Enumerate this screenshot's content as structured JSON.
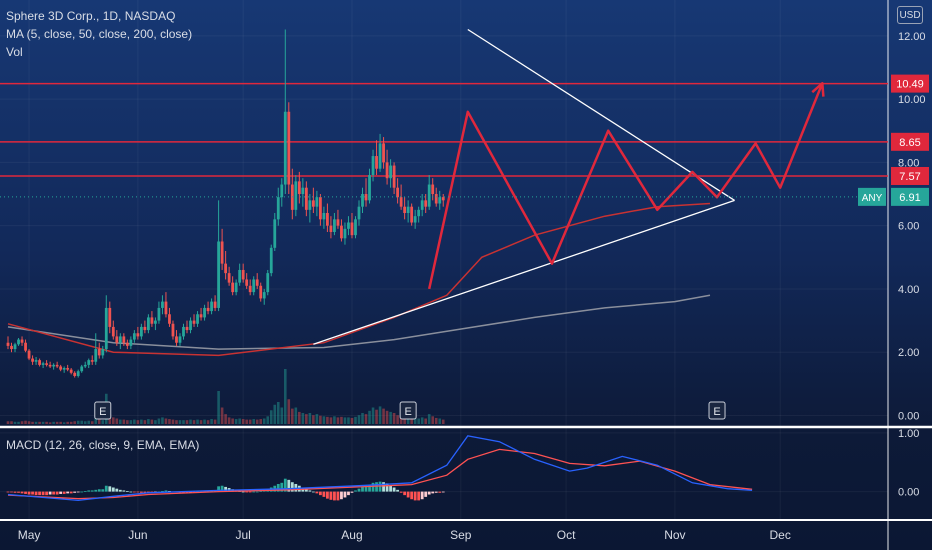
{
  "header": {
    "symbol_line": "Sphere 3D Corp., 1D, NASDAQ",
    "ma_line": "MA (5, close, 50, close, 200, close)",
    "vol_line": "Vol"
  },
  "currency_badge": "USD",
  "macd_label": "MACD (12, 26, close, 9, EMA, EMA)",
  "colors": {
    "up": "#26a69a",
    "down": "#ef5350",
    "resistance": "#e0283c",
    "pattern": "#e0283c",
    "trendline": "#ffffff",
    "ma_fast": "#c83232",
    "ma_slow": "#8a8f9c",
    "macd_line": "#2962ff",
    "signal_line": "#ff5252"
  },
  "chart_data": [
    {
      "type": "candlestick",
      "title": "Sphere 3D Corp., 1D, NASDAQ",
      "ylim": [
        -0.3,
        12.5
      ],
      "yticks": [
        "12.00",
        "10.00",
        "8.00",
        "6.00",
        "4.00",
        "2.00",
        "0.00"
      ],
      "yticks_values": [
        12,
        10,
        8,
        6,
        4,
        2,
        0
      ],
      "x_labels": [
        "May",
        "Jun",
        "Jul",
        "Aug",
        "Sep",
        "Oct",
        "Nov",
        "Dec"
      ],
      "x_label_days": [
        6,
        37,
        67,
        98,
        129,
        159,
        190,
        220
      ],
      "price_tags": [
        {
          "label": "10.49",
          "value": 10.49
        },
        {
          "label": "8.65",
          "value": 8.65
        },
        {
          "label": "7.57",
          "value": 7.57
        }
      ],
      "last_price": {
        "symbol": "ANY",
        "label": "6.91",
        "value": 6.91
      },
      "earnings_markers": [
        {
          "label": "E",
          "day": 27
        },
        {
          "label": "E",
          "day": 114
        },
        {
          "label": "E",
          "day": 202
        }
      ],
      "horizontal_levels": [
        10.49,
        8.65,
        7.57
      ],
      "triangle_upper": [
        [
          131,
          12.2
        ],
        [
          207,
          6.8
        ]
      ],
      "triangle_lower": [
        [
          87,
          2.25
        ],
        [
          207,
          6.8
        ]
      ],
      "pattern_path": [
        [
          120,
          4.0
        ],
        [
          131,
          9.6
        ],
        [
          155,
          4.8
        ],
        [
          171,
          9.0
        ],
        [
          185,
          6.5
        ],
        [
          195,
          7.7
        ],
        [
          202,
          6.9
        ],
        [
          213,
          8.6
        ],
        [
          220,
          7.2
        ],
        [
          232,
          10.5
        ]
      ],
      "ma_fast": [
        [
          0,
          2.9
        ],
        [
          30,
          2.0
        ],
        [
          60,
          1.9
        ],
        [
          90,
          2.3
        ],
        [
          110,
          3.1
        ],
        [
          125,
          3.8
        ],
        [
          135,
          5.0
        ],
        [
          150,
          5.7
        ],
        [
          170,
          6.3
        ],
        [
          185,
          6.6
        ],
        [
          200,
          6.7
        ]
      ],
      "ma_slow": [
        [
          0,
          2.8
        ],
        [
          30,
          2.3
        ],
        [
          60,
          2.1
        ],
        [
          90,
          2.15
        ],
        [
          110,
          2.4
        ],
        [
          130,
          2.75
        ],
        [
          150,
          3.1
        ],
        [
          170,
          3.4
        ],
        [
          190,
          3.6
        ],
        [
          200,
          3.8
        ]
      ],
      "ohlc": [
        [
          2.3,
          2.5,
          2.1,
          2.2
        ],
        [
          2.2,
          2.3,
          2.0,
          2.1
        ],
        [
          2.1,
          2.3,
          2.0,
          2.25
        ],
        [
          2.25,
          2.45,
          2.2,
          2.4
        ],
        [
          2.4,
          2.5,
          2.2,
          2.3
        ],
        [
          2.3,
          2.4,
          2.0,
          2.05
        ],
        [
          2.05,
          2.1,
          1.75,
          1.8
        ],
        [
          1.8,
          1.9,
          1.6,
          1.7
        ],
        [
          1.7,
          1.85,
          1.6,
          1.75
        ],
        [
          1.75,
          1.8,
          1.55,
          1.6
        ],
        [
          1.6,
          1.7,
          1.5,
          1.65
        ],
        [
          1.65,
          1.75,
          1.55,
          1.6
        ],
        [
          1.6,
          1.7,
          1.5,
          1.55
        ],
        [
          1.55,
          1.65,
          1.45,
          1.6
        ],
        [
          1.6,
          1.7,
          1.5,
          1.55
        ],
        [
          1.55,
          1.6,
          1.4,
          1.45
        ],
        [
          1.45,
          1.55,
          1.35,
          1.5
        ],
        [
          1.5,
          1.6,
          1.4,
          1.45
        ],
        [
          1.45,
          1.5,
          1.3,
          1.35
        ],
        [
          1.35,
          1.4,
          1.2,
          1.25
        ],
        [
          1.25,
          1.45,
          1.2,
          1.4
        ],
        [
          1.4,
          1.6,
          1.35,
          1.55
        ],
        [
          1.55,
          1.7,
          1.5,
          1.6
        ],
        [
          1.6,
          1.8,
          1.5,
          1.75
        ],
        [
          1.75,
          1.9,
          1.6,
          1.7
        ],
        [
          1.7,
          2.6,
          1.6,
          2.1
        ],
        [
          2.1,
          2.3,
          1.8,
          1.9
        ],
        [
          1.9,
          2.2,
          1.8,
          2.1
        ],
        [
          2.1,
          3.8,
          2.0,
          3.4
        ],
        [
          3.4,
          3.6,
          2.6,
          2.8
        ],
        [
          2.8,
          3.0,
          2.4,
          2.5
        ],
        [
          2.5,
          2.7,
          2.2,
          2.3
        ],
        [
          2.3,
          2.6,
          2.1,
          2.5
        ],
        [
          2.5,
          2.6,
          2.2,
          2.3
        ],
        [
          2.3,
          2.4,
          2.1,
          2.2
        ],
        [
          2.2,
          2.5,
          2.1,
          2.4
        ],
        [
          2.4,
          2.7,
          2.3,
          2.6
        ],
        [
          2.6,
          2.8,
          2.4,
          2.5
        ],
        [
          2.5,
          2.9,
          2.4,
          2.8
        ],
        [
          2.8,
          3.0,
          2.6,
          2.7
        ],
        [
          2.7,
          3.2,
          2.6,
          3.1
        ],
        [
          3.1,
          3.3,
          2.8,
          2.9
        ],
        [
          2.9,
          3.1,
          2.7,
          3.0
        ],
        [
          3.0,
          3.6,
          2.9,
          3.4
        ],
        [
          3.4,
          3.8,
          3.2,
          3.6
        ],
        [
          3.6,
          3.9,
          3.1,
          3.2
        ],
        [
          3.2,
          3.4,
          2.8,
          2.9
        ],
        [
          2.9,
          3.0,
          2.4,
          2.5
        ],
        [
          2.5,
          2.7,
          2.2,
          2.3
        ],
        [
          2.3,
          2.6,
          2.2,
          2.5
        ],
        [
          2.5,
          2.9,
          2.4,
          2.8
        ],
        [
          2.8,
          3.0,
          2.6,
          2.7
        ],
        [
          2.7,
          3.1,
          2.6,
          3.0
        ],
        [
          3.0,
          3.2,
          2.8,
          2.9
        ],
        [
          2.9,
          3.3,
          2.8,
          3.2
        ],
        [
          3.2,
          3.4,
          3.0,
          3.1
        ],
        [
          3.1,
          3.5,
          3.0,
          3.4
        ],
        [
          3.4,
          3.6,
          3.2,
          3.3
        ],
        [
          3.3,
          3.7,
          3.2,
          3.6
        ],
        [
          3.6,
          3.8,
          3.3,
          3.4
        ],
        [
          3.4,
          6.8,
          3.3,
          5.5
        ],
        [
          5.5,
          5.9,
          4.6,
          4.8
        ],
        [
          4.8,
          5.2,
          4.3,
          4.5
        ],
        [
          4.5,
          4.7,
          4.1,
          4.2
        ],
        [
          4.2,
          4.4,
          3.8,
          3.9
        ],
        [
          3.9,
          4.3,
          3.8,
          4.2
        ],
        [
          4.2,
          4.8,
          4.1,
          4.6
        ],
        [
          4.6,
          4.8,
          4.2,
          4.3
        ],
        [
          4.3,
          4.5,
          4.0,
          4.1
        ],
        [
          4.1,
          4.3,
          3.8,
          3.9
        ],
        [
          3.9,
          4.4,
          3.8,
          4.3
        ],
        [
          4.3,
          4.5,
          4.0,
          4.1
        ],
        [
          4.1,
          4.2,
          3.6,
          3.7
        ],
        [
          3.7,
          4.0,
          3.5,
          3.9
        ],
        [
          3.9,
          4.6,
          3.8,
          4.5
        ],
        [
          4.5,
          5.4,
          4.4,
          5.3
        ],
        [
          5.3,
          6.4,
          5.2,
          6.2
        ],
        [
          6.2,
          7.2,
          6.0,
          6.9
        ],
        [
          6.9,
          7.5,
          6.6,
          7.3
        ],
        [
          7.3,
          12.2,
          7.0,
          9.6
        ],
        [
          9.6,
          9.9,
          7.0,
          7.3
        ],
        [
          7.3,
          7.8,
          6.2,
          6.5
        ],
        [
          6.5,
          7.6,
          6.3,
          7.4
        ],
        [
          7.4,
          7.7,
          6.7,
          7.0
        ],
        [
          7.0,
          7.5,
          6.6,
          7.2
        ],
        [
          7.2,
          7.4,
          6.3,
          6.5
        ],
        [
          6.5,
          7.0,
          6.1,
          6.8
        ],
        [
          6.8,
          7.2,
          6.4,
          6.6
        ],
        [
          6.6,
          7.1,
          6.3,
          6.9
        ],
        [
          6.9,
          7.0,
          6.0,
          6.2
        ],
        [
          6.2,
          6.6,
          5.9,
          6.4
        ],
        [
          6.4,
          6.7,
          5.8,
          6.0
        ],
        [
          6.0,
          6.3,
          5.6,
          5.8
        ],
        [
          5.8,
          6.4,
          5.7,
          6.2
        ],
        [
          6.2,
          6.5,
          5.9,
          6.0
        ],
        [
          6.0,
          6.2,
          5.5,
          5.6
        ],
        [
          5.6,
          6.1,
          5.4,
          5.9
        ],
        [
          5.9,
          6.3,
          5.7,
          6.1
        ],
        [
          6.1,
          6.4,
          5.6,
          5.7
        ],
        [
          5.7,
          6.3,
          5.6,
          6.2
        ],
        [
          6.2,
          6.8,
          6.0,
          6.6
        ],
        [
          6.6,
          7.2,
          6.4,
          7.0
        ],
        [
          7.0,
          7.5,
          6.6,
          6.8
        ],
        [
          6.8,
          7.8,
          6.7,
          7.6
        ],
        [
          7.6,
          8.4,
          7.4,
          8.2
        ],
        [
          8.2,
          8.7,
          7.6,
          7.8
        ],
        [
          7.8,
          8.9,
          7.7,
          8.6
        ],
        [
          8.6,
          8.8,
          7.8,
          8.0
        ],
        [
          8.0,
          8.4,
          7.3,
          7.5
        ],
        [
          7.5,
          8.1,
          7.2,
          7.9
        ],
        [
          7.9,
          8.0,
          7.0,
          7.2
        ],
        [
          7.2,
          7.5,
          6.7,
          6.9
        ],
        [
          6.9,
          7.3,
          6.5,
          6.6
        ],
        [
          6.6,
          6.9,
          6.2,
          6.4
        ],
        [
          6.4,
          6.8,
          6.1,
          6.6
        ],
        [
          6.6,
          6.7,
          6.0,
          6.1
        ],
        [
          6.1,
          6.5,
          5.9,
          6.3
        ],
        [
          6.3,
          6.6,
          6.1,
          6.5
        ],
        [
          6.5,
          7.0,
          6.3,
          6.8
        ],
        [
          6.8,
          7.0,
          6.4,
          6.6
        ],
        [
          6.6,
          7.6,
          6.5,
          7.3
        ],
        [
          7.3,
          7.5,
          6.8,
          7.0
        ],
        [
          7.0,
          7.2,
          6.6,
          6.7
        ],
        [
          6.7,
          7.1,
          6.5,
          6.9
        ],
        [
          6.9,
          7.0,
          6.6,
          6.8
        ]
      ],
      "volume": [
        0.05,
        0.05,
        0.04,
        0.04,
        0.05,
        0.06,
        0.05,
        0.04,
        0.04,
        0.04,
        0.04,
        0.04,
        0.03,
        0.04,
        0.04,
        0.04,
        0.03,
        0.04,
        0.04,
        0.05,
        0.06,
        0.06,
        0.05,
        0.06,
        0.05,
        0.1,
        0.08,
        0.07,
        0.55,
        0.18,
        0.12,
        0.1,
        0.08,
        0.08,
        0.07,
        0.07,
        0.08,
        0.07,
        0.08,
        0.07,
        0.09,
        0.08,
        0.07,
        0.1,
        0.12,
        0.1,
        0.09,
        0.08,
        0.07,
        0.07,
        0.07,
        0.07,
        0.08,
        0.07,
        0.08,
        0.07,
        0.08,
        0.07,
        0.09,
        0.08,
        0.6,
        0.3,
        0.18,
        0.12,
        0.1,
        0.09,
        0.1,
        0.09,
        0.08,
        0.08,
        0.09,
        0.08,
        0.09,
        0.1,
        0.14,
        0.25,
        0.35,
        0.4,
        0.3,
        1.0,
        0.45,
        0.28,
        0.3,
        0.22,
        0.2,
        0.18,
        0.2,
        0.16,
        0.18,
        0.15,
        0.14,
        0.13,
        0.12,
        0.14,
        0.12,
        0.13,
        0.12,
        0.12,
        0.11,
        0.13,
        0.16,
        0.2,
        0.18,
        0.24,
        0.3,
        0.26,
        0.32,
        0.28,
        0.24,
        0.22,
        0.2,
        0.16,
        0.14,
        0.12,
        0.12,
        0.1,
        0.11,
        0.1,
        0.12,
        0.1,
        0.18,
        0.14,
        0.11,
        0.1,
        0.08
      ]
    },
    {
      "type": "bar",
      "title": "MACD (12, 26, close, 9, EMA, EMA)",
      "ylim": [
        -0.45,
        1.05
      ],
      "yticks": [
        "1.00",
        "0.00"
      ],
      "yticks_values": [
        1.0,
        0.0
      ],
      "macd_line": [
        [
          0,
          -0.05
        ],
        [
          20,
          -0.15
        ],
        [
          30,
          -0.08
        ],
        [
          40,
          -0.02
        ],
        [
          60,
          0.02
        ],
        [
          80,
          0.05
        ],
        [
          100,
          0.1
        ],
        [
          115,
          0.15
        ],
        [
          125,
          0.45
        ],
        [
          131,
          0.95
        ],
        [
          140,
          0.85
        ],
        [
          150,
          0.55
        ],
        [
          160,
          0.35
        ],
        [
          165,
          0.4
        ],
        [
          175,
          0.6
        ],
        [
          185,
          0.45
        ],
        [
          195,
          0.15
        ],
        [
          205,
          0.05
        ],
        [
          212,
          0.02
        ]
      ],
      "signal_line": [
        [
          0,
          -0.06
        ],
        [
          20,
          -0.12
        ],
        [
          30,
          -0.1
        ],
        [
          40,
          -0.05
        ],
        [
          60,
          0.0
        ],
        [
          80,
          0.03
        ],
        [
          100,
          0.08
        ],
        [
          115,
          0.12
        ],
        [
          125,
          0.28
        ],
        [
          131,
          0.55
        ],
        [
          140,
          0.72
        ],
        [
          150,
          0.65
        ],
        [
          160,
          0.48
        ],
        [
          170,
          0.44
        ],
        [
          180,
          0.52
        ],
        [
          190,
          0.35
        ],
        [
          200,
          0.12
        ],
        [
          212,
          0.04
        ]
      ],
      "histogram": [
        -0.01,
        -0.01,
        -0.02,
        -0.02,
        -0.03,
        -0.04,
        -0.05,
        -0.05,
        -0.06,
        -0.06,
        -0.06,
        -0.06,
        -0.05,
        -0.05,
        -0.05,
        -0.04,
        -0.04,
        -0.03,
        -0.03,
        -0.02,
        -0.01,
        0.0,
        0.01,
        0.02,
        0.02,
        0.03,
        0.04,
        0.04,
        0.1,
        0.09,
        0.07,
        0.05,
        0.03,
        0.02,
        0.01,
        0.0,
        -0.01,
        -0.01,
        -0.02,
        -0.02,
        -0.02,
        -0.02,
        -0.01,
        0.0,
        0.01,
        0.02,
        0.01,
        0.0,
        -0.01,
        -0.02,
        -0.02,
        -0.02,
        -0.01,
        -0.01,
        0.0,
        0.01,
        0.01,
        0.01,
        0.02,
        0.02,
        0.09,
        0.1,
        0.08,
        0.06,
        0.04,
        0.02,
        0.01,
        0.0,
        -0.01,
        -0.01,
        0.0,
        0.0,
        0.01,
        0.02,
        0.04,
        0.07,
        0.1,
        0.13,
        0.15,
        0.22,
        0.2,
        0.16,
        0.13,
        0.1,
        0.07,
        0.04,
        0.02,
        0.0,
        -0.03,
        -0.06,
        -0.09,
        -0.12,
        -0.14,
        -0.15,
        -0.15,
        -0.13,
        -0.1,
        -0.06,
        -0.02,
        0.02,
        0.05,
        0.08,
        0.1,
        0.12,
        0.15,
        0.16,
        0.17,
        0.16,
        0.14,
        0.11,
        0.07,
        0.03,
        -0.02,
        -0.06,
        -0.1,
        -0.13,
        -0.15,
        -0.15,
        -0.13,
        -0.09,
        -0.05,
        -0.03,
        -0.02,
        -0.02,
        -0.01
      ]
    }
  ]
}
